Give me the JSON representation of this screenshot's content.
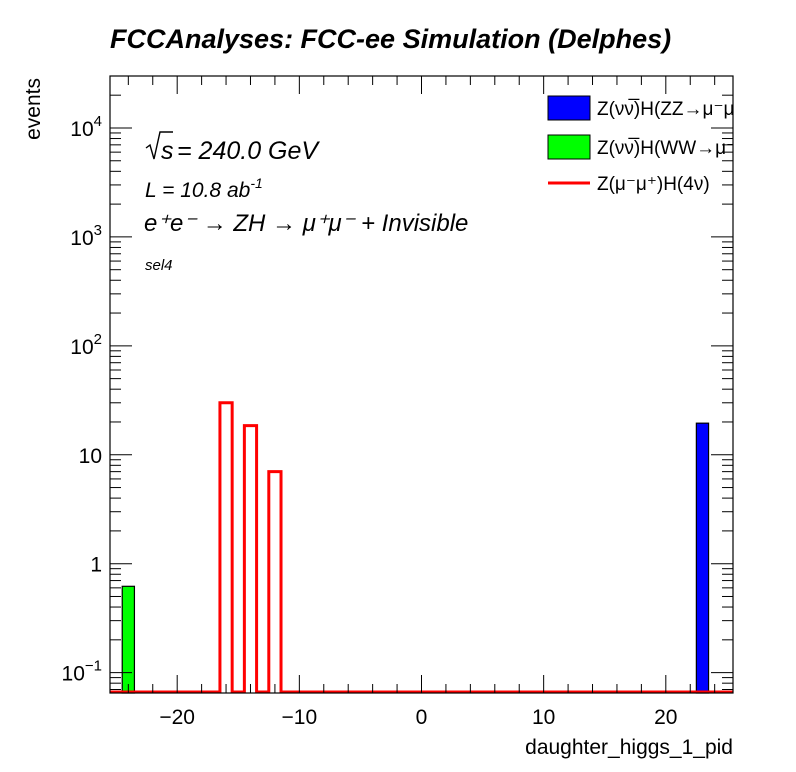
{
  "chart_data": {
    "type": "histogram",
    "title": "FCCAnalyses: FCC-ee Simulation (Delphes)",
    "xlabel": "daughter_higgs_1_pid",
    "ylabel": "events",
    "yscale": "log",
    "xlim": [
      -25.5,
      25.5
    ],
    "ylim": [
      0.065,
      30000
    ],
    "bin_width": 1,
    "xticks": [
      -20,
      -10,
      0,
      10,
      20
    ],
    "xtick_labels": [
      "−20",
      "−10",
      "0",
      "10",
      "20"
    ],
    "yticks": [
      {
        "value": 0.1,
        "base": "10",
        "exp": "−1"
      },
      {
        "value": 1,
        "base": "1",
        "exp": ""
      },
      {
        "value": 10,
        "base": "10",
        "exp": ""
      },
      {
        "value": 100,
        "base": "10",
        "exp": "2"
      },
      {
        "value": 1000,
        "base": "10",
        "exp": "3"
      },
      {
        "value": 10000,
        "base": "10",
        "exp": "4"
      }
    ],
    "annotations": {
      "sqrt_s": "= 240.0 GeV",
      "lumi": "L = 10.8 ab",
      "lumi_exp": "-1",
      "process": "e⁺e⁻ → ZH → μ⁺μ⁻ + Invisible",
      "selection": "sel4"
    },
    "legend_position": "top-right",
    "series": [
      {
        "name": "Z(νν̅)H(ZZ→μ⁻μ⁺νν̅)",
        "style": "filled",
        "color": "#0000ff",
        "bins": [
          {
            "x": 23,
            "value": 19.5
          }
        ]
      },
      {
        "name": "Z(νν̅)H(WW→μ⁻ν̅μ⁺ν)",
        "style": "filled",
        "color": "#00ff00",
        "bins": [
          {
            "x": -24,
            "value": 0.62
          }
        ]
      },
      {
        "name": "Z(μ⁻μ⁺)H(4ν)",
        "style": "line",
        "color": "#ff0000",
        "bins": [
          {
            "x": -16,
            "value": 30
          },
          {
            "x": -14,
            "value": 18.5
          },
          {
            "x": -12,
            "value": 7
          }
        ]
      }
    ]
  }
}
